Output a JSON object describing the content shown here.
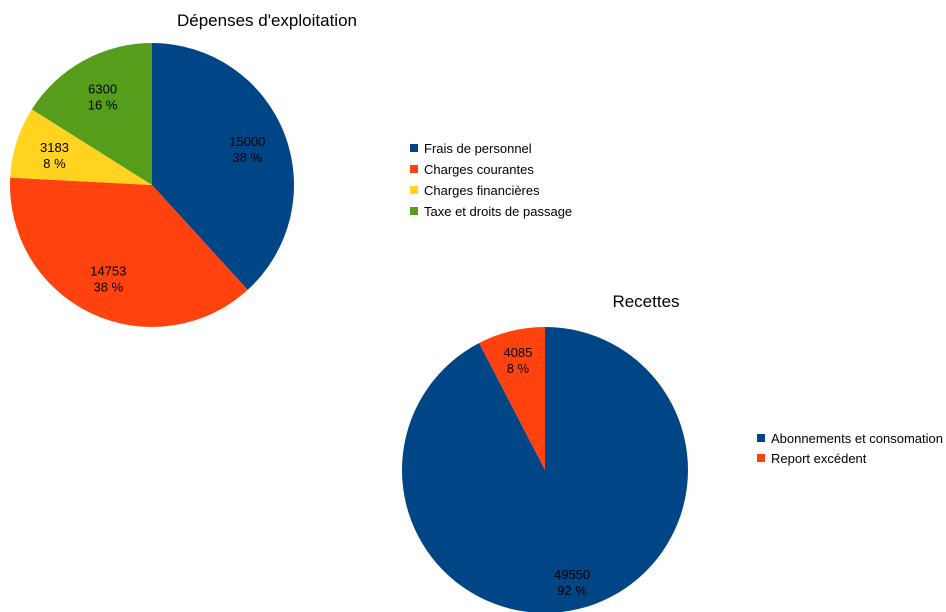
{
  "chart_data": [
    {
      "type": "pie",
      "title": "Dépenses d'exploitation",
      "slices": [
        {
          "label": "Frais de personnel",
          "value": 15000,
          "percent": "38 %",
          "color": "#004586"
        },
        {
          "label": "Charges courantes",
          "value": 14753,
          "percent": "38 %",
          "color": "#ff420e"
        },
        {
          "label": "Charges financières",
          "value": 3183,
          "percent": "8 %",
          "color": "#ffd320"
        },
        {
          "label": "Taxe et droits de passage",
          "value": 6300,
          "percent": "16 %",
          "color": "#579d1c"
        }
      ],
      "legend_position": "right"
    },
    {
      "type": "pie",
      "title": "Recettes",
      "slices": [
        {
          "label": "Abonnements et consomation",
          "value": 49550,
          "percent": "92 %",
          "color": "#004586"
        },
        {
          "label": "Report excédent",
          "value": 4085,
          "percent": "8 %",
          "color": "#ff420e"
        }
      ],
      "legend_position": "right"
    }
  ]
}
